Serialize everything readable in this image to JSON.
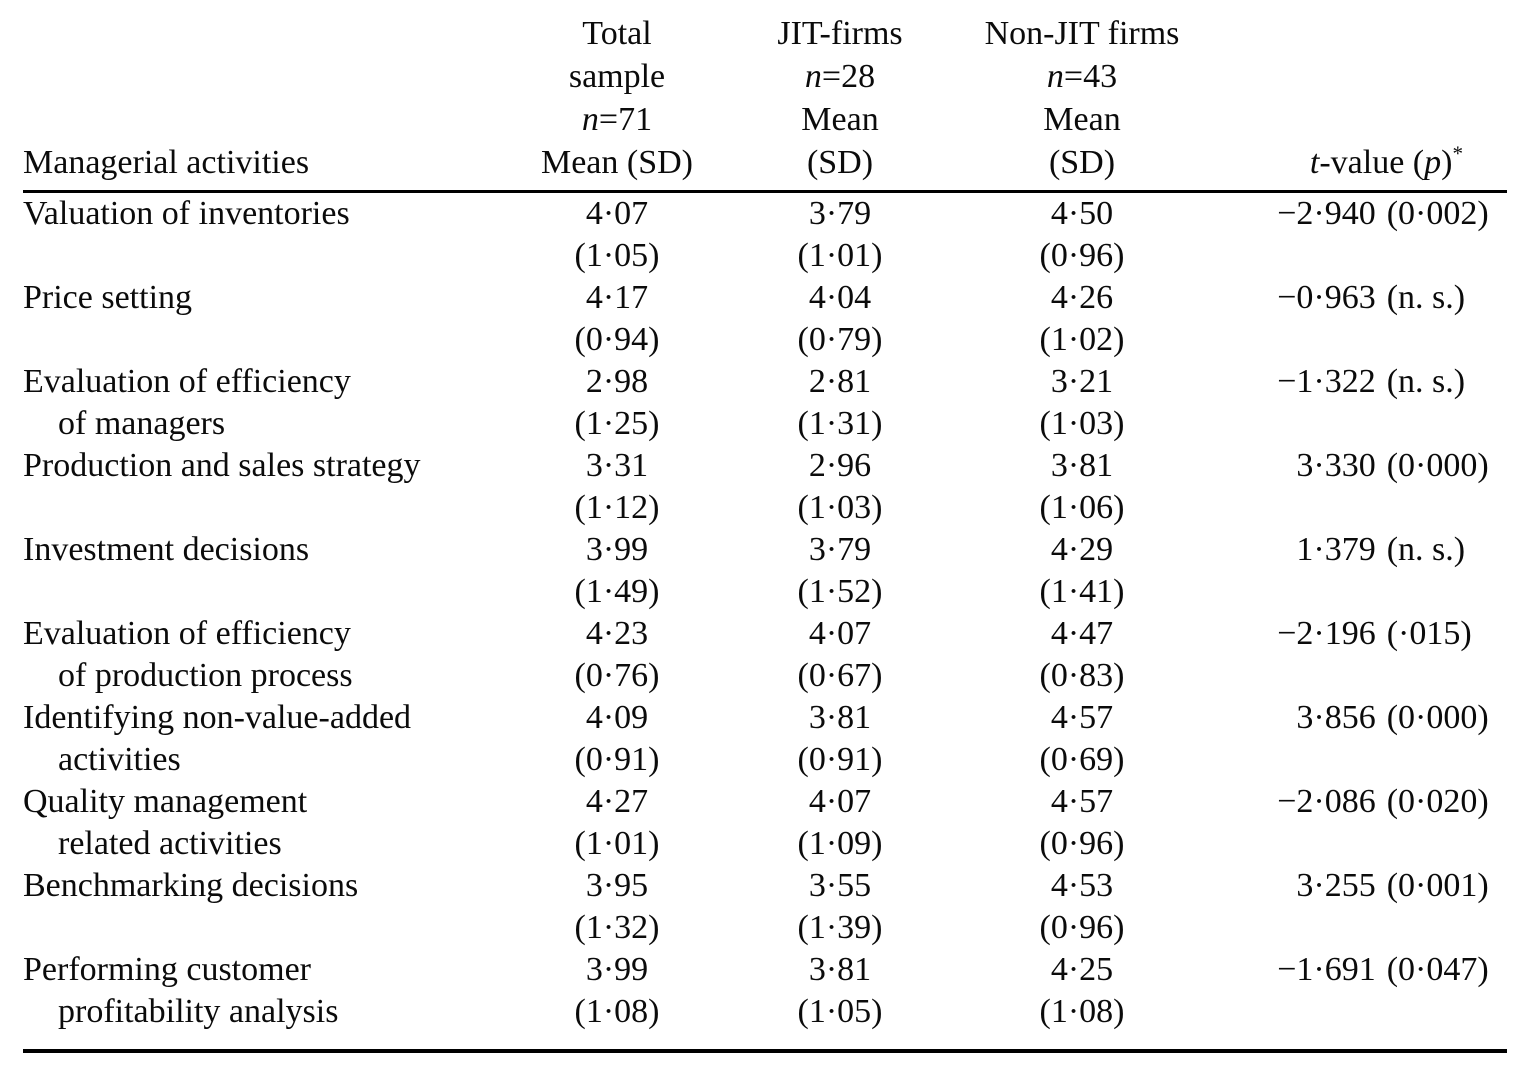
{
  "table": {
    "header": {
      "activities_label": "Managerial activities",
      "col_total": {
        "line1": "Total",
        "line2": "sample",
        "n_italic": "n",
        "n_rest": "=71",
        "line4": "Mean (SD)"
      },
      "col_jit": {
        "line1": "JIT-firms",
        "n_italic": "n",
        "n_rest": "=28",
        "line3": "Mean",
        "line4": "(SD)"
      },
      "col_nonjit": {
        "line1": "Non-JIT firms",
        "n_italic": "n",
        "n_rest": "=43",
        "line3": "Mean",
        "line4": "(SD)"
      },
      "col_t": {
        "t_italic": "t",
        "mid": "-value (",
        "p_italic": "p",
        "close": ")",
        "sup": "*"
      }
    },
    "rows": [
      {
        "label1": "Valuation of inventories",
        "label2": "",
        "total_mean": "4·07",
        "total_sd": "(1·05)",
        "jit_mean": "3·79",
        "jit_sd": "(1·01)",
        "nonjit_mean": "4·50",
        "nonjit_sd": "(0·96)",
        "t": "−2·940",
        "p": "(0·002)"
      },
      {
        "label1": "Price setting",
        "label2": "",
        "total_mean": "4·17",
        "total_sd": "(0·94)",
        "jit_mean": "4·04",
        "jit_sd": "(0·79)",
        "nonjit_mean": "4·26",
        "nonjit_sd": "(1·02)",
        "t": "−0·963",
        "p": "(n. s.)"
      },
      {
        "label1": "Evaluation of efficiency",
        "label2": "of managers",
        "total_mean": "2·98",
        "total_sd": "(1·25)",
        "jit_mean": "2·81",
        "jit_sd": "(1·31)",
        "nonjit_mean": "3·21",
        "nonjit_sd": "(1·03)",
        "t": "−1·322",
        "p": "(n. s.)"
      },
      {
        "label1": "Production and sales strategy",
        "label2": "",
        "total_mean": "3·31",
        "total_sd": "(1·12)",
        "jit_mean": "2·96",
        "jit_sd": "(1·03)",
        "nonjit_mean": "3·81",
        "nonjit_sd": "(1·06)",
        "t": "3·330",
        "p": "(0·000)"
      },
      {
        "label1": "Investment decisions",
        "label2": "",
        "total_mean": "3·99",
        "total_sd": "(1·49)",
        "jit_mean": "3·79",
        "jit_sd": "(1·52)",
        "nonjit_mean": "4·29",
        "nonjit_sd": "(1·41)",
        "t": "1·379",
        "p": "(n. s.)"
      },
      {
        "label1": "Evaluation of efficiency",
        "label2": "of production process",
        "total_mean": "4·23",
        "total_sd": "(0·76)",
        "jit_mean": "4·07",
        "jit_sd": "(0·67)",
        "nonjit_mean": "4·47",
        "nonjit_sd": "(0·83)",
        "t": "−2·196",
        "p": "(·015)"
      },
      {
        "label1": "Identifying non-value-added",
        "label2": "activities",
        "total_mean": "4·09",
        "total_sd": "(0·91)",
        "jit_mean": "3·81",
        "jit_sd": "(0·91)",
        "nonjit_mean": "4·57",
        "nonjit_sd": "(0·69)",
        "t": "3·856",
        "p": "(0·000)"
      },
      {
        "label1": "Quality management",
        "label2": "related activities",
        "total_mean": "4·27",
        "total_sd": "(1·01)",
        "jit_mean": "4·07",
        "jit_sd": "(1·09)",
        "nonjit_mean": "4·57",
        "nonjit_sd": "(0·96)",
        "t": "−2·086",
        "p": "(0·020)"
      },
      {
        "label1": "Benchmarking decisions",
        "label2": "",
        "total_mean": "3·95",
        "total_sd": "(1·32)",
        "jit_mean": "3·55",
        "jit_sd": "(1·39)",
        "nonjit_mean": "4·53",
        "nonjit_sd": "(0·96)",
        "t": "3·255",
        "p": "(0·001)"
      },
      {
        "label1": "Performing customer",
        "label2": "profitability analysis",
        "total_mean": "3·99",
        "total_sd": "(1·08)",
        "jit_mean": "3·81",
        "jit_sd": "(1·05)",
        "nonjit_mean": "4·25",
        "nonjit_sd": "(1·08)",
        "t": "−1·691",
        "p": "(0·047)"
      }
    ]
  }
}
